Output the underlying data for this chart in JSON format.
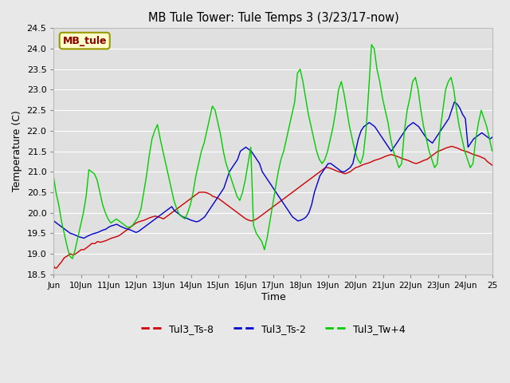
{
  "title": "MB Tule Tower: Tule Temps 3 (3/23/17-now)",
  "xlabel": "Time",
  "ylabel": "Temperature (C)",
  "ylim": [
    18.5,
    24.5
  ],
  "fig_bg_color": "#e8e8e8",
  "plot_bg_color": "#e0e0e0",
  "grid_color": "#ffffff",
  "legend_label": "MB_tule",
  "legend_bg": "#ffffcc",
  "legend_edge": "#999900",
  "legend_text_color": "#880000",
  "series_colors": [
    "#cc0000",
    "#0000cc",
    "#00cc00"
  ],
  "series_labels": [
    "Tul3_Ts-8",
    "Tul3_Ts-2",
    "Tul3_Tw+4"
  ],
  "xtick_labels": [
    "Jun",
    "10Jun",
    "11Jun",
    "12Jun",
    "13Jun",
    "14Jun",
    "15Jun",
    "16Jun",
    "17Jun",
    "18Jun",
    "19Jun",
    "20Jun",
    "21Jun",
    "22Jun",
    "23Jun",
    "24Jun",
    "25"
  ],
  "xtick_positions": [
    0,
    1,
    2,
    3,
    4,
    5,
    6,
    7,
    8,
    9,
    10,
    11,
    12,
    13,
    14,
    15,
    16
  ],
  "ytick_values": [
    18.5,
    19.0,
    19.5,
    20.0,
    20.5,
    21.0,
    21.5,
    22.0,
    22.5,
    23.0,
    23.5,
    24.0,
    24.5
  ],
  "red_data_x": [
    0.0,
    0.05,
    0.1,
    0.18,
    0.28,
    0.38,
    0.5,
    0.6,
    0.7,
    0.8,
    0.9,
    1.0,
    1.1,
    1.2,
    1.3,
    1.38,
    1.5,
    1.6,
    1.7,
    1.8,
    1.9,
    2.0,
    2.1,
    2.2,
    2.3,
    2.4,
    2.5,
    2.6,
    2.7,
    2.8,
    2.9,
    3.0,
    3.1,
    3.2,
    3.3,
    3.4,
    3.5,
    3.6,
    3.7,
    3.8,
    3.9,
    4.0,
    4.1,
    4.2,
    4.3,
    4.4,
    4.5,
    4.6,
    4.7,
    4.8,
    4.9,
    5.0,
    5.1,
    5.2,
    5.3,
    5.4,
    5.5,
    5.6,
    5.7,
    5.8,
    5.9,
    6.0,
    6.1,
    6.2,
    6.3,
    6.4,
    6.5,
    6.6,
    6.7,
    6.8,
    6.9,
    7.0,
    7.1,
    7.2,
    7.3,
    7.4,
    7.5,
    7.6,
    7.7,
    7.8,
    7.9,
    8.0,
    8.1,
    8.2,
    8.3,
    8.4,
    8.5,
    8.6,
    8.7,
    8.8,
    8.9,
    9.0,
    9.1,
    9.2,
    9.3,
    9.4,
    9.5,
    9.6,
    9.7,
    9.8,
    9.9,
    10.0,
    10.1,
    10.2,
    10.3,
    10.4,
    10.5,
    10.6,
    10.7,
    10.8,
    10.9,
    11.0,
    11.1,
    11.2,
    11.3,
    11.4,
    11.5,
    11.6,
    11.7,
    11.8,
    11.9,
    12.0,
    12.1,
    12.2,
    12.3,
    12.4,
    12.5,
    12.6,
    12.7,
    12.8,
    12.9,
    13.0,
    13.1,
    13.2,
    13.3,
    13.4,
    13.5,
    13.6,
    13.7,
    13.8,
    13.9,
    14.0,
    14.1,
    14.2,
    14.3,
    14.4,
    14.5,
    14.6,
    14.7,
    14.8,
    14.9,
    15.0,
    15.1,
    15.2,
    15.3,
    15.4,
    15.5,
    15.6,
    15.7,
    15.8,
    15.9,
    16.0
  ],
  "red_data_y": [
    18.7,
    18.65,
    18.65,
    18.72,
    18.8,
    18.9,
    18.95,
    19.0,
    18.97,
    19.0,
    19.05,
    19.1,
    19.1,
    19.15,
    19.2,
    19.25,
    19.25,
    19.3,
    19.28,
    19.3,
    19.32,
    19.35,
    19.38,
    19.4,
    19.42,
    19.45,
    19.5,
    19.55,
    19.6,
    19.65,
    19.7,
    19.75,
    19.78,
    19.8,
    19.82,
    19.85,
    19.88,
    19.9,
    19.92,
    19.9,
    19.88,
    19.85,
    19.9,
    19.95,
    20.0,
    20.05,
    20.1,
    20.15,
    20.2,
    20.25,
    20.3,
    20.35,
    20.4,
    20.45,
    20.5,
    20.5,
    20.5,
    20.48,
    20.45,
    20.4,
    20.38,
    20.35,
    20.3,
    20.25,
    20.2,
    20.15,
    20.1,
    20.05,
    20.0,
    19.95,
    19.9,
    19.85,
    19.82,
    19.8,
    19.82,
    19.85,
    19.9,
    19.95,
    20.0,
    20.05,
    20.1,
    20.15,
    20.2,
    20.25,
    20.3,
    20.35,
    20.4,
    20.45,
    20.5,
    20.55,
    20.6,
    20.65,
    20.7,
    20.75,
    20.8,
    20.85,
    20.9,
    20.95,
    21.0,
    21.05,
    21.1,
    21.1,
    21.08,
    21.05,
    21.02,
    21.0,
    20.98,
    20.95,
    20.97,
    21.0,
    21.05,
    21.1,
    21.12,
    21.15,
    21.18,
    21.2,
    21.22,
    21.25,
    21.28,
    21.3,
    21.32,
    21.35,
    21.38,
    21.4,
    21.42,
    21.4,
    21.38,
    21.35,
    21.32,
    21.3,
    21.28,
    21.25,
    21.22,
    21.2,
    21.22,
    21.25,
    21.28,
    21.3,
    21.35,
    21.4,
    21.45,
    21.5,
    21.52,
    21.55,
    21.58,
    21.6,
    21.62,
    21.6,
    21.58,
    21.55,
    21.52,
    21.5,
    21.48,
    21.45,
    21.42,
    21.4,
    21.38,
    21.35,
    21.32,
    21.25,
    21.2,
    21.15
  ],
  "blue_data_x": [
    0.0,
    0.1,
    0.2,
    0.3,
    0.4,
    0.5,
    0.6,
    0.7,
    0.8,
    0.9,
    1.0,
    1.1,
    1.2,
    1.3,
    1.4,
    1.5,
    1.6,
    1.7,
    1.8,
    1.9,
    2.0,
    2.1,
    2.2,
    2.3,
    2.4,
    2.5,
    2.6,
    2.7,
    2.8,
    2.9,
    3.0,
    3.1,
    3.2,
    3.3,
    3.4,
    3.5,
    3.6,
    3.7,
    3.8,
    3.9,
    4.0,
    4.1,
    4.2,
    4.3,
    4.4,
    4.5,
    4.6,
    4.7,
    4.8,
    4.9,
    5.0,
    5.1,
    5.2,
    5.3,
    5.4,
    5.5,
    5.6,
    5.7,
    5.8,
    5.9,
    6.0,
    6.1,
    6.2,
    6.3,
    6.4,
    6.5,
    6.6,
    6.7,
    6.8,
    6.9,
    7.0,
    7.1,
    7.2,
    7.3,
    7.4,
    7.5,
    7.6,
    7.7,
    7.8,
    7.9,
    8.0,
    8.1,
    8.2,
    8.3,
    8.4,
    8.5,
    8.6,
    8.7,
    8.8,
    8.9,
    9.0,
    9.1,
    9.2,
    9.3,
    9.4,
    9.5,
    9.6,
    9.7,
    9.8,
    9.9,
    10.0,
    10.1,
    10.2,
    10.3,
    10.4,
    10.5,
    10.6,
    10.7,
    10.8,
    10.9,
    11.0,
    11.1,
    11.2,
    11.3,
    11.4,
    11.5,
    11.6,
    11.7,
    11.8,
    11.9,
    12.0,
    12.1,
    12.2,
    12.3,
    12.4,
    12.5,
    12.6,
    12.7,
    12.8,
    12.9,
    13.0,
    13.1,
    13.2,
    13.3,
    13.4,
    13.5,
    13.6,
    13.7,
    13.8,
    13.9,
    14.0,
    14.1,
    14.2,
    14.3,
    14.4,
    14.5,
    14.6,
    14.7,
    14.8,
    14.9,
    15.0,
    15.1,
    15.2,
    15.3,
    15.4,
    15.5,
    15.6,
    15.7,
    15.8,
    15.9,
    16.0
  ],
  "blue_data_y": [
    19.8,
    19.75,
    19.7,
    19.65,
    19.6,
    19.55,
    19.5,
    19.48,
    19.45,
    19.42,
    19.4,
    19.38,
    19.42,
    19.45,
    19.48,
    19.5,
    19.52,
    19.55,
    19.58,
    19.6,
    19.65,
    19.68,
    19.7,
    19.72,
    19.68,
    19.65,
    19.62,
    19.6,
    19.58,
    19.55,
    19.52,
    19.55,
    19.6,
    19.65,
    19.7,
    19.75,
    19.8,
    19.85,
    19.9,
    19.95,
    20.0,
    20.05,
    20.1,
    20.15,
    20.05,
    20.0,
    19.95,
    19.9,
    19.88,
    19.85,
    19.82,
    19.8,
    19.78,
    19.8,
    19.85,
    19.9,
    20.0,
    20.1,
    20.2,
    20.3,
    20.4,
    20.5,
    20.6,
    20.8,
    21.0,
    21.1,
    21.2,
    21.3,
    21.5,
    21.55,
    21.6,
    21.55,
    21.5,
    21.4,
    21.3,
    21.2,
    21.0,
    20.9,
    20.8,
    20.7,
    20.6,
    20.5,
    20.4,
    20.3,
    20.2,
    20.1,
    20.0,
    19.9,
    19.85,
    19.8,
    19.82,
    19.85,
    19.9,
    20.0,
    20.2,
    20.5,
    20.7,
    20.9,
    21.0,
    21.1,
    21.2,
    21.2,
    21.15,
    21.1,
    21.05,
    21.0,
    21.0,
    21.05,
    21.1,
    21.2,
    21.5,
    21.8,
    22.0,
    22.1,
    22.15,
    22.2,
    22.15,
    22.1,
    22.0,
    21.9,
    21.8,
    21.7,
    21.6,
    21.5,
    21.6,
    21.7,
    21.8,
    21.9,
    22.0,
    22.1,
    22.15,
    22.2,
    22.15,
    22.1,
    22.0,
    21.9,
    21.8,
    21.75,
    21.7,
    21.8,
    21.9,
    22.0,
    22.1,
    22.2,
    22.3,
    22.5,
    22.7,
    22.65,
    22.55,
    22.4,
    22.3,
    21.6,
    21.7,
    21.8,
    21.85,
    21.9,
    21.95,
    21.9,
    21.85,
    21.8,
    21.85
  ],
  "green_data_x": [
    0.0,
    0.08,
    0.18,
    0.28,
    0.38,
    0.48,
    0.58,
    0.68,
    0.78,
    0.88,
    0.98,
    1.08,
    1.18,
    1.28,
    1.38,
    1.48,
    1.58,
    1.68,
    1.78,
    1.88,
    1.98,
    2.08,
    2.18,
    2.28,
    2.38,
    2.48,
    2.58,
    2.68,
    2.78,
    2.88,
    2.98,
    3.08,
    3.18,
    3.28,
    3.38,
    3.48,
    3.58,
    3.68,
    3.78,
    3.88,
    3.98,
    4.08,
    4.18,
    4.28,
    4.38,
    4.48,
    4.58,
    4.68,
    4.78,
    4.88,
    4.98,
    5.08,
    5.18,
    5.28,
    5.38,
    5.48,
    5.58,
    5.68,
    5.78,
    5.88,
    5.98,
    6.08,
    6.18,
    6.28,
    6.38,
    6.48,
    6.58,
    6.68,
    6.78,
    6.88,
    6.98,
    7.08,
    7.18,
    7.28,
    7.38,
    7.48,
    7.58,
    7.68,
    7.78,
    7.88,
    7.98,
    8.08,
    8.18,
    8.28,
    8.38,
    8.48,
    8.58,
    8.68,
    8.78,
    8.88,
    8.98,
    9.08,
    9.18,
    9.28,
    9.38,
    9.48,
    9.58,
    9.68,
    9.78,
    9.88,
    9.98,
    10.08,
    10.18,
    10.28,
    10.38,
    10.48,
    10.58,
    10.68,
    10.78,
    10.88,
    10.98,
    11.08,
    11.18,
    11.28,
    11.38,
    11.48,
    11.58,
    11.68,
    11.78,
    11.88,
    11.98,
    12.08,
    12.18,
    12.28,
    12.38,
    12.48,
    12.58,
    12.68,
    12.78,
    12.88,
    12.98,
    13.08,
    13.18,
    13.28,
    13.38,
    13.48,
    13.58,
    13.68,
    13.78,
    13.88,
    13.98,
    14.08,
    14.18,
    14.28,
    14.38,
    14.48,
    14.58,
    14.68,
    14.78,
    14.88,
    14.98,
    15.08,
    15.18,
    15.28,
    15.38,
    15.48,
    15.58,
    15.68,
    15.78,
    15.88,
    15.98
  ],
  "green_data_y": [
    20.85,
    20.5,
    20.2,
    19.8,
    19.5,
    19.2,
    18.95,
    18.88,
    19.1,
    19.4,
    19.7,
    20.0,
    20.4,
    21.05,
    21.0,
    20.95,
    20.8,
    20.5,
    20.2,
    20.0,
    19.85,
    19.75,
    19.8,
    19.85,
    19.8,
    19.75,
    19.7,
    19.65,
    19.65,
    19.7,
    19.8,
    19.9,
    20.1,
    20.5,
    20.9,
    21.4,
    21.8,
    22.0,
    22.15,
    21.8,
    21.5,
    21.2,
    20.9,
    20.6,
    20.3,
    20.1,
    19.95,
    19.9,
    19.85,
    20.0,
    20.2,
    20.5,
    20.9,
    21.2,
    21.5,
    21.7,
    22.0,
    22.3,
    22.6,
    22.5,
    22.2,
    21.9,
    21.5,
    21.2,
    21.0,
    20.8,
    20.6,
    20.4,
    20.3,
    20.5,
    20.8,
    21.2,
    21.6,
    19.7,
    19.5,
    19.4,
    19.3,
    19.1,
    19.4,
    19.8,
    20.2,
    20.6,
    21.0,
    21.3,
    21.5,
    21.8,
    22.1,
    22.4,
    22.7,
    23.4,
    23.5,
    23.2,
    22.8,
    22.4,
    22.1,
    21.8,
    21.5,
    21.3,
    21.2,
    21.3,
    21.5,
    21.8,
    22.1,
    22.5,
    23.0,
    23.2,
    22.9,
    22.5,
    22.1,
    21.8,
    21.5,
    21.3,
    21.2,
    21.4,
    22.0,
    23.0,
    24.1,
    24.0,
    23.5,
    23.2,
    22.8,
    22.5,
    22.2,
    21.8,
    21.5,
    21.3,
    21.1,
    21.2,
    22.0,
    22.5,
    22.8,
    23.2,
    23.3,
    23.0,
    22.5,
    22.1,
    21.8,
    21.5,
    21.3,
    21.1,
    21.2,
    22.0,
    22.5,
    23.0,
    23.2,
    23.3,
    23.0,
    22.5,
    22.1,
    21.8,
    21.5,
    21.3,
    21.1,
    21.2,
    21.8,
    22.2,
    22.5,
    22.3,
    22.1,
    21.8,
    21.5
  ]
}
